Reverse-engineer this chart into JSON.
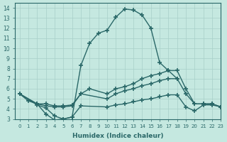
{
  "xlabel": "Humidex (Indice chaleur)",
  "xlim": [
    -0.5,
    23
  ],
  "ylim": [
    3,
    14.5
  ],
  "yticks": [
    3,
    4,
    5,
    6,
    7,
    8,
    9,
    10,
    11,
    12,
    13,
    14
  ],
  "xticks": [
    0,
    1,
    2,
    3,
    4,
    5,
    6,
    7,
    8,
    9,
    10,
    11,
    12,
    13,
    14,
    15,
    16,
    17,
    18,
    19,
    20,
    21,
    22,
    23
  ],
  "xtick_labels": [
    "0",
    "1",
    "2",
    "3",
    "4",
    "5",
    "6",
    "7",
    "8",
    "9",
    "10",
    "11",
    "12",
    "13",
    "14",
    "15",
    "16",
    "17",
    "18",
    "19",
    "20",
    "21",
    "22",
    "23"
  ],
  "bg_color": "#c5e8e0",
  "grid_color": "#a8cfc8",
  "line_color": "#2a6868",
  "line_width": 1.0,
  "marker": "+",
  "markersize": 4,
  "markeredgewidth": 1.2,
  "lines": [
    {
      "x": [
        0,
        1,
        2,
        3,
        4,
        5,
        6,
        7,
        8,
        9,
        10,
        11,
        12,
        13,
        14,
        15,
        16,
        17,
        18
      ],
      "y": [
        5.5,
        4.8,
        4.5,
        3.5,
        2.9,
        3.0,
        3.2,
        8.3,
        10.5,
        11.5,
        11.8,
        13.1,
        13.9,
        13.8,
        13.3,
        12.0,
        8.6,
        7.8,
        7.0
      ]
    },
    {
      "x": [
        0,
        2,
        3,
        4,
        5,
        6,
        7,
        8,
        10,
        11,
        12,
        13,
        14,
        15,
        16,
        17,
        18,
        19,
        20,
        21,
        22,
        23
      ],
      "y": [
        5.5,
        4.5,
        4.5,
        4.3,
        4.3,
        4.4,
        5.5,
        6.0,
        5.5,
        6.0,
        6.2,
        6.5,
        7.0,
        7.3,
        7.5,
        7.8,
        7.8,
        6.0,
        4.5,
        4.5,
        4.5,
        4.2
      ]
    },
    {
      "x": [
        0,
        2,
        3,
        4,
        5,
        6,
        7,
        10,
        11,
        12,
        13,
        14,
        15,
        16,
        17,
        18,
        19,
        20,
        21,
        22,
        23
      ],
      "y": [
        5.5,
        4.5,
        4.3,
        4.2,
        4.2,
        4.3,
        5.5,
        5.0,
        5.5,
        5.8,
        6.0,
        6.3,
        6.5,
        6.8,
        7.0,
        7.0,
        5.5,
        4.5,
        4.5,
        4.5,
        4.2
      ]
    },
    {
      "x": [
        0,
        2,
        3,
        4,
        5,
        6,
        7,
        10,
        11,
        12,
        13,
        14,
        15,
        16,
        17,
        18,
        19,
        20,
        21,
        22,
        23
      ],
      "y": [
        5.5,
        4.4,
        4.1,
        3.3,
        3.0,
        3.2,
        4.3,
        4.2,
        4.4,
        4.5,
        4.7,
        4.9,
        5.0,
        5.2,
        5.4,
        5.4,
        4.2,
        3.8,
        4.4,
        4.4,
        4.2
      ]
    }
  ]
}
